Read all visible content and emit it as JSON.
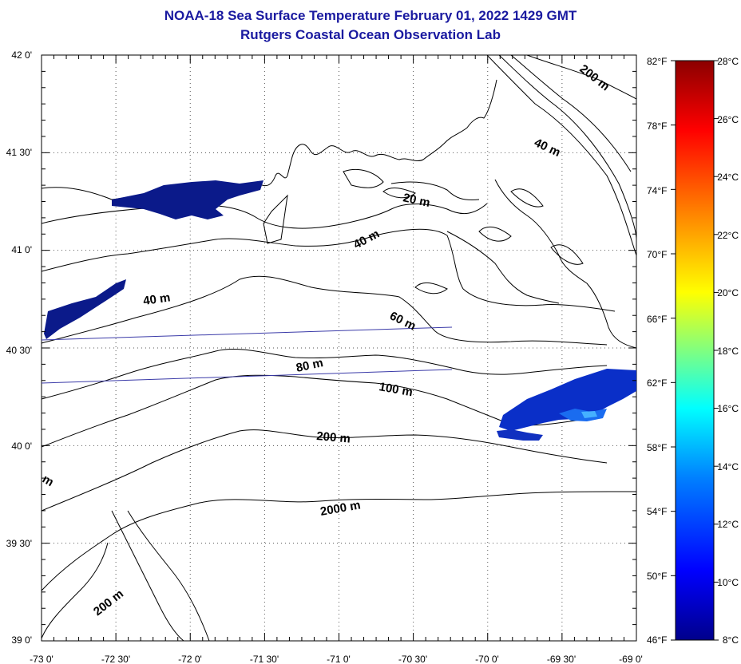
{
  "title": {
    "line1": "NOAA-18 Sea Surface Temperature February 01, 2022 1429 GMT",
    "line2": "Rutgers Coastal Ocean Observation Lab"
  },
  "lat_labels": [
    "42 0'",
    "41 30'",
    "41 0'",
    "40 30'",
    "40 0'",
    "39 30'",
    "39 0'"
  ],
  "lon_labels": [
    "-73 0'",
    "-72 30'",
    "-72 0'",
    "-71 30'",
    "-71 0'",
    "-70 30'",
    "-70 0'",
    "-69 30'",
    "-69 0'"
  ],
  "f_labels": [
    "82°F",
    "78°F",
    "74°F",
    "70°F",
    "66°F",
    "62°F",
    "58°F",
    "54°F",
    "50°F",
    "46°F"
  ],
  "c_labels": [
    "28°C",
    "26°C",
    "24°C",
    "22°C",
    "20°C",
    "18°C",
    "16°C",
    "14°C",
    "12°C",
    "10°C",
    "8°C"
  ],
  "depth_labels": [
    "200 m",
    "40 m",
    "20 m",
    "40 m",
    "40 m",
    "60 m",
    "80 m",
    "100 m",
    "200 m",
    "2000 m",
    "200 m",
    "m"
  ],
  "colorbar": {
    "stops": [
      "#00008b",
      "#0000ff",
      "#0080ff",
      "#00ffff",
      "#80ff80",
      "#ffff00",
      "#ff8000",
      "#ff0000",
      "#8b0000"
    ]
  }
}
